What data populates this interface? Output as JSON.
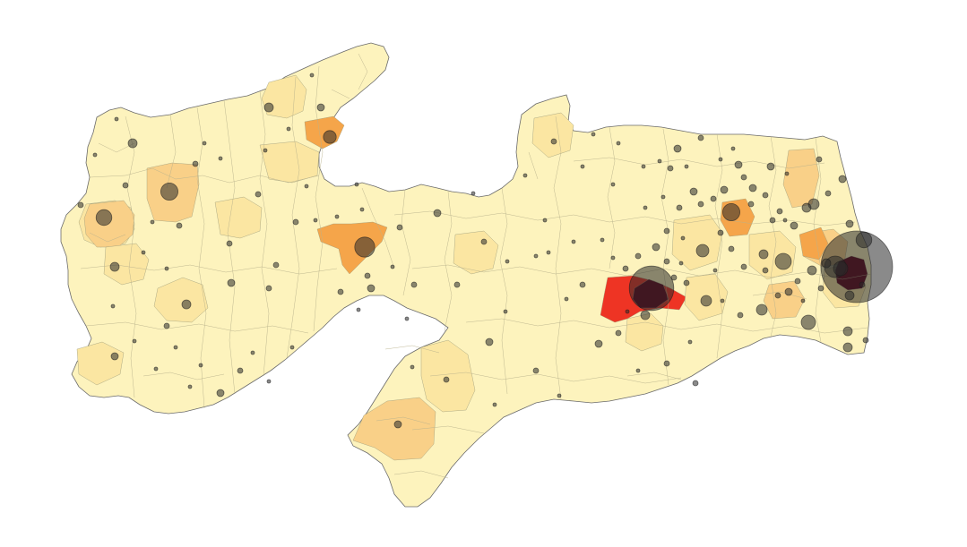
{
  "map": {
    "region": "Paraíba",
    "colors": {
      "background": "#ffffff",
      "base_fill": "#fdf3bd",
      "light": "#fbe6a2",
      "medium": "#f9d088",
      "orange": "#f5a54a",
      "red": "#ee3424",
      "dark": "#5c0018",
      "bubble": "#2a2a2a"
    },
    "shaded_areas": [
      {
        "name": "municipality-west-1",
        "level": "light"
      },
      {
        "name": "municipality-west-2",
        "level": "medium"
      },
      {
        "name": "municipality-west-3",
        "level": "light"
      },
      {
        "name": "municipality-north-1",
        "level": "light"
      },
      {
        "name": "municipality-north-2",
        "level": "orange"
      },
      {
        "name": "municipality-central-1",
        "level": "orange"
      },
      {
        "name": "municipality-southwest-1",
        "level": "light"
      },
      {
        "name": "municipality-south-1",
        "level": "light"
      },
      {
        "name": "municipality-south-2",
        "level": "light"
      },
      {
        "name": "municipality-campina",
        "level": "red"
      },
      {
        "name": "municipality-campina-core",
        "level": "dark"
      },
      {
        "name": "municipality-agreste-1",
        "level": "light"
      },
      {
        "name": "municipality-agreste-2",
        "level": "medium"
      },
      {
        "name": "municipality-agreste-3",
        "level": "orange"
      },
      {
        "name": "municipality-coast-1",
        "level": "medium"
      },
      {
        "name": "municipality-coast-2",
        "level": "medium"
      },
      {
        "name": "municipality-coast-3",
        "level": "orange"
      },
      {
        "name": "municipality-joao-pessoa",
        "level": "dark"
      }
    ],
    "bubbles": [
      {
        "id": "joao-pessoa",
        "size": 1.0
      },
      {
        "id": "campina-grande",
        "size": 0.62
      },
      {
        "id": "santa-rita",
        "size": 0.3
      },
      {
        "id": "cabedelo",
        "size": 0.22
      },
      {
        "id": "patos",
        "size": 0.28
      },
      {
        "id": "sousa",
        "size": 0.24
      },
      {
        "id": "cajazeiras",
        "size": 0.22
      },
      {
        "id": "guarabira",
        "size": 0.24
      },
      {
        "id": "bayeux",
        "size": 0.2
      },
      {
        "id": "pombal",
        "size": 0.18
      }
    ]
  }
}
